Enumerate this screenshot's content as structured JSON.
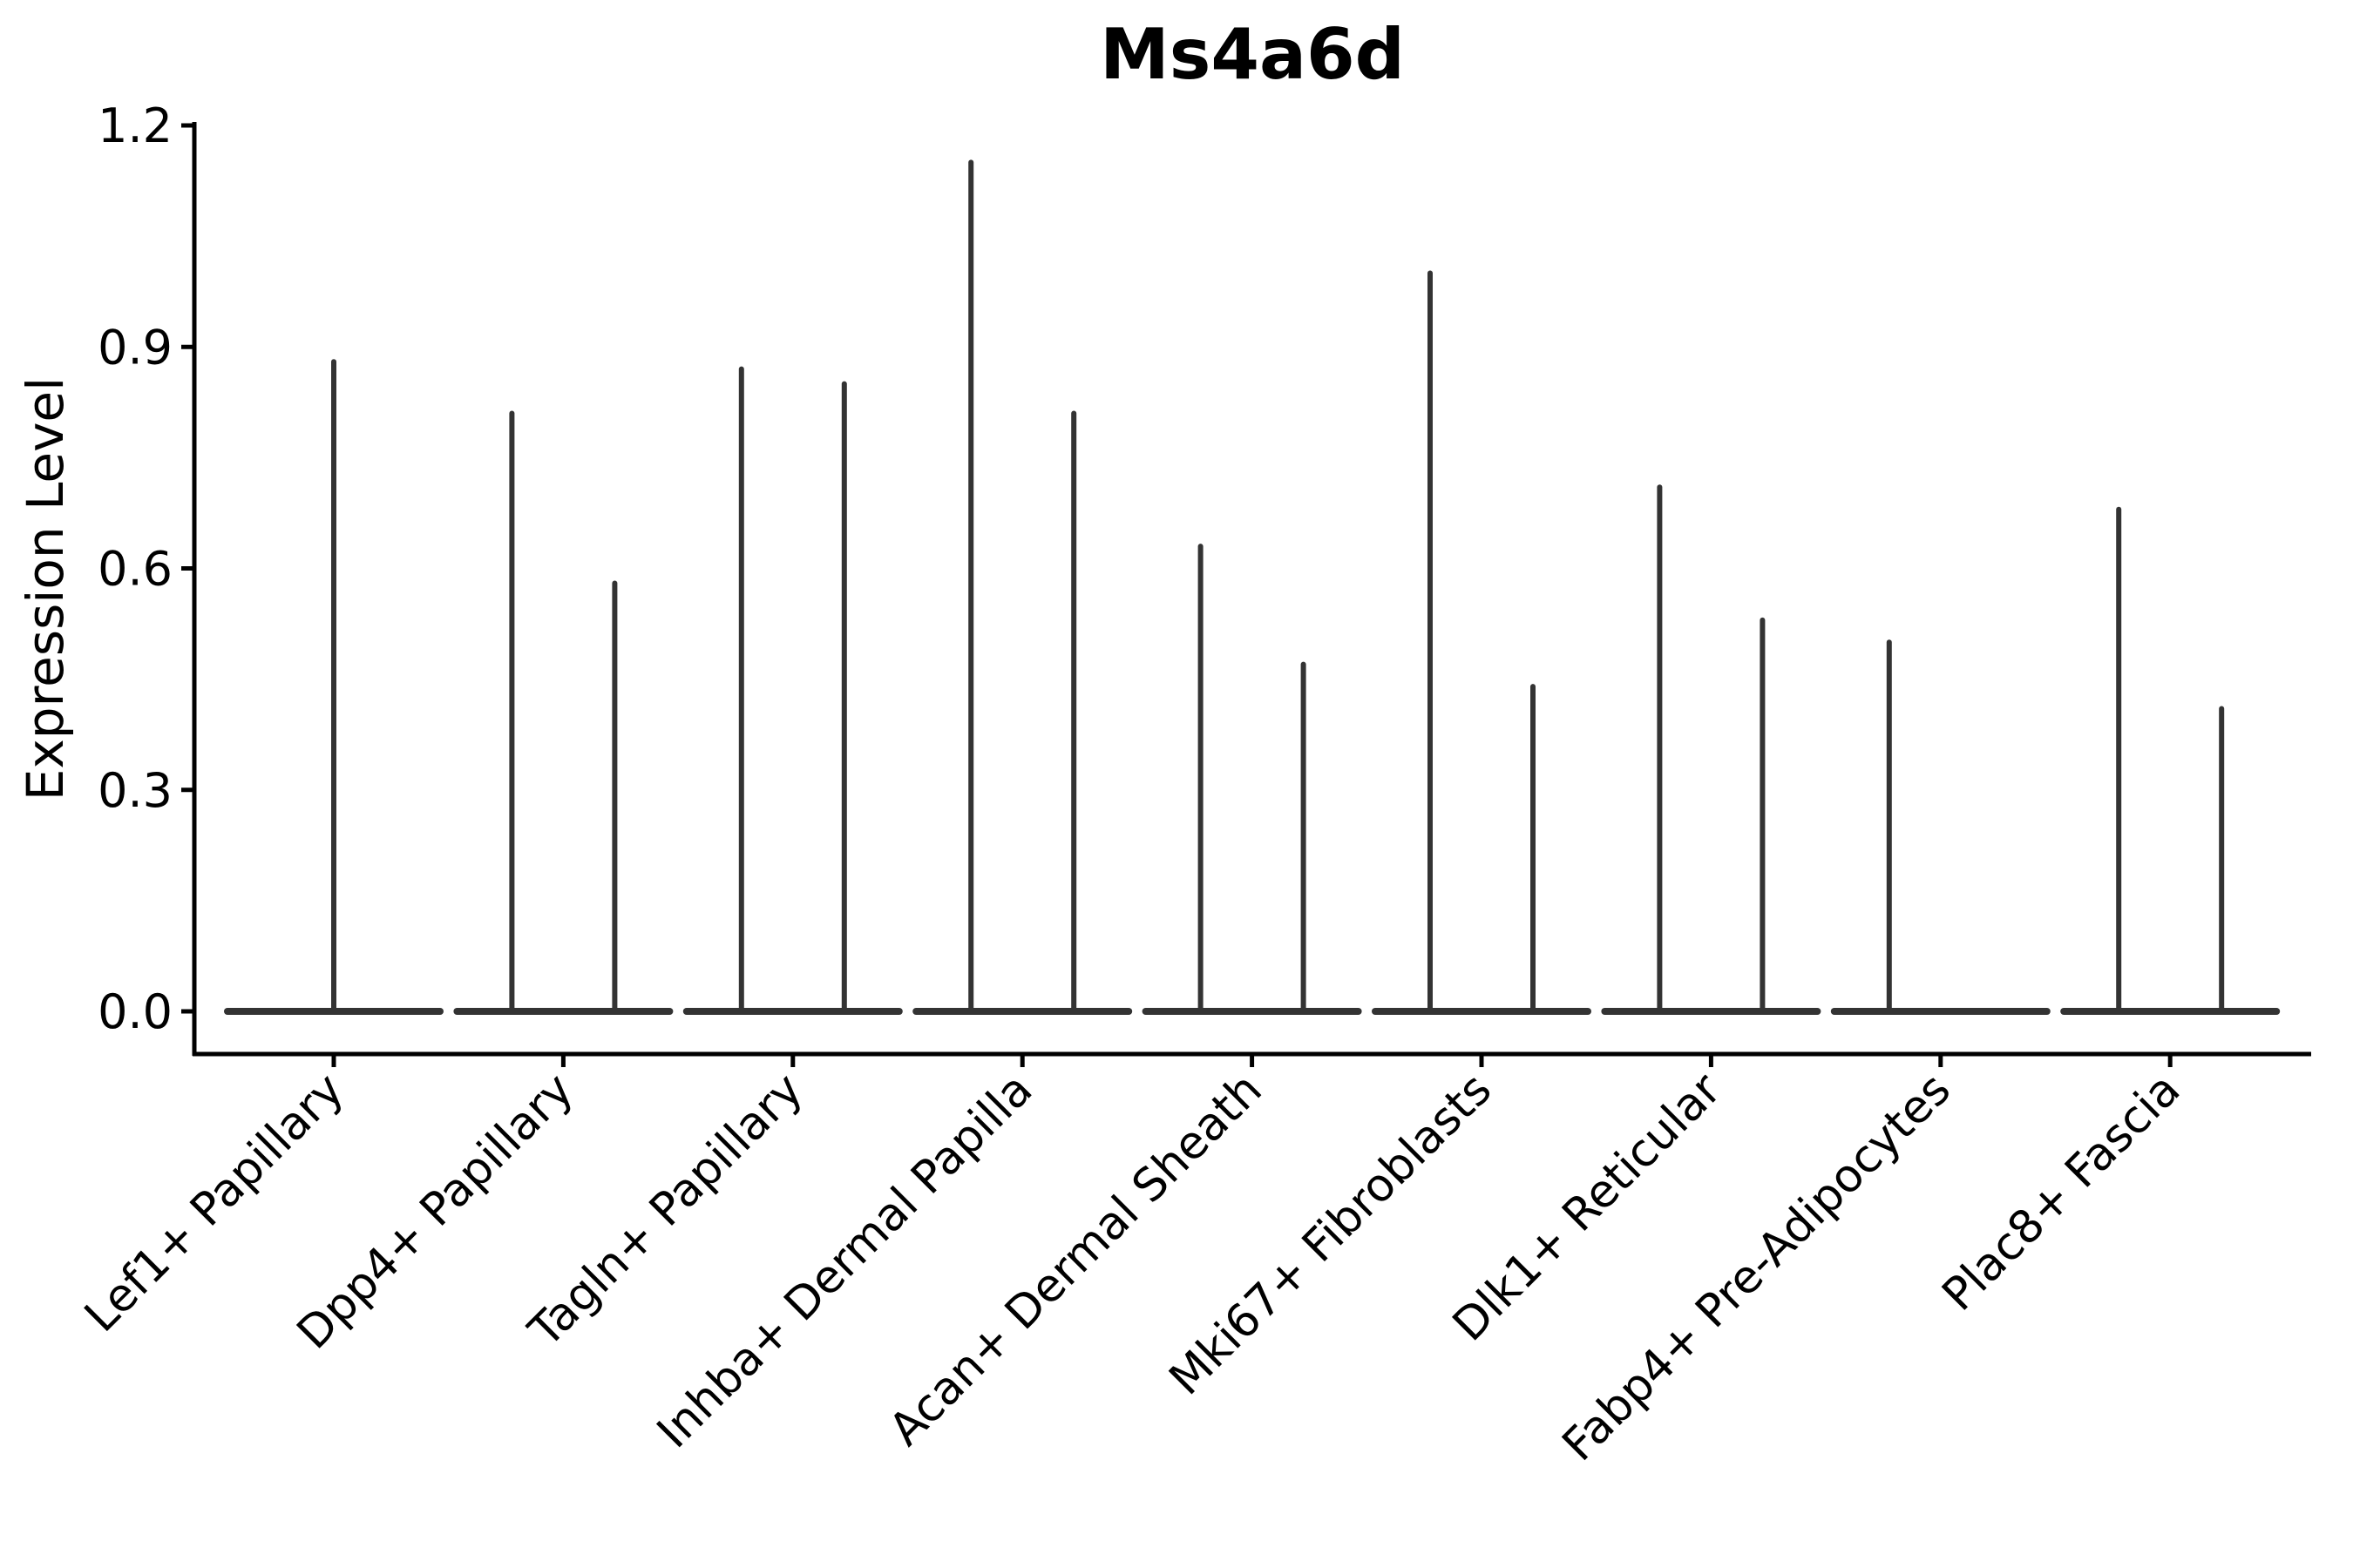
{
  "title": "Ms4a6d",
  "axes": {
    "ylabel": "Expression Level",
    "xlabel": ""
  },
  "colors": {
    "violin": "#333333",
    "axis": "#000000",
    "text": "#000000",
    "background": "#ffffff"
  },
  "chart_data": {
    "type": "violin",
    "title": "Ms4a6d",
    "ylabel": "Expression Level",
    "xlabel": "",
    "ylim": [
      -0.06,
      1.2
    ],
    "yticks": [
      0.0,
      0.3,
      0.6,
      0.9,
      1.2
    ],
    "ytick_labels": [
      "0.0",
      "0.3",
      "0.6",
      "0.9",
      "1.2"
    ],
    "grid": false,
    "legend": null,
    "baseline_value": 0.0,
    "categories": [
      "Lef1+ Papillary",
      "Dpp4+ Papillary",
      "Tagln+ Papillary",
      "Inhba+ Dermal Papilla",
      "Acan+ Dermal Sheath",
      "Mki67+ Fibroblasts",
      "Dlk1+ Reticular",
      "Fabp4+ Pre-Adipocytes",
      "Plac8+ Fascia"
    ],
    "violins": [
      {
        "category": "Lef1+ Papillary",
        "spikes": [
          {
            "offset": 0,
            "max": 0.88
          }
        ]
      },
      {
        "category": "Dpp4+ Papillary",
        "spikes": [
          {
            "offset": -1,
            "max": 0.81
          },
          {
            "offset": 1,
            "max": 0.58
          }
        ]
      },
      {
        "category": "Tagln+ Papillary",
        "spikes": [
          {
            "offset": -1,
            "max": 0.87
          },
          {
            "offset": 1,
            "max": 0.85
          }
        ]
      },
      {
        "category": "Inhba+ Dermal Papilla",
        "spikes": [
          {
            "offset": -1,
            "max": 1.15
          },
          {
            "offset": 1,
            "max": 0.81
          }
        ]
      },
      {
        "category": "Acan+ Dermal Sheath",
        "spikes": [
          {
            "offset": -1,
            "max": 0.63
          },
          {
            "offset": 1,
            "max": 0.47
          }
        ]
      },
      {
        "category": "Mki67+ Fibroblasts",
        "spikes": [
          {
            "offset": -1,
            "max": 1.0
          },
          {
            "offset": 1,
            "max": 0.44
          }
        ]
      },
      {
        "category": "Dlk1+ Reticular",
        "spikes": [
          {
            "offset": -1,
            "max": 0.71
          },
          {
            "offset": 1,
            "max": 0.53
          }
        ]
      },
      {
        "category": "Fabp4+ Pre-Adipocytes",
        "spikes": [
          {
            "offset": -1,
            "max": 0.5
          }
        ]
      },
      {
        "category": "Plac8+ Fascia",
        "spikes": [
          {
            "offset": -1,
            "max": 0.68
          },
          {
            "offset": 1,
            "max": 0.41
          }
        ]
      }
    ]
  }
}
